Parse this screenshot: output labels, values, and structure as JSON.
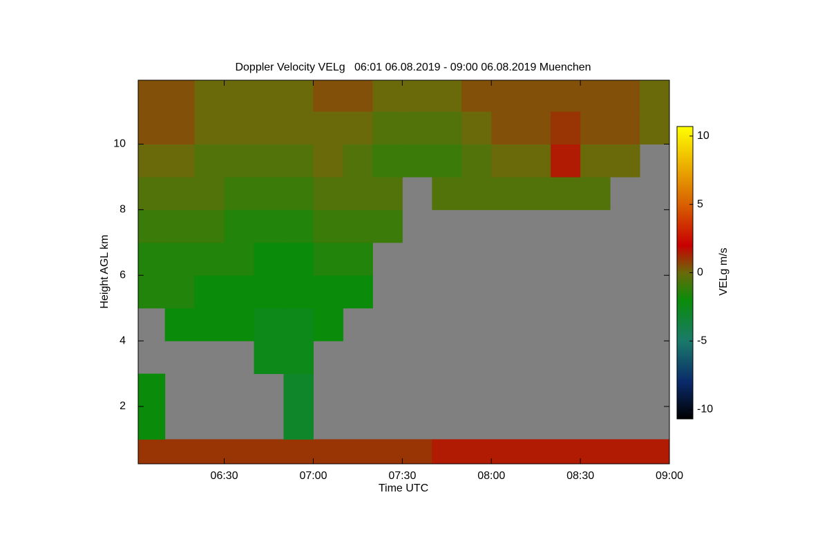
{
  "chart_data": {
    "type": "heatmap",
    "title": "Doppler Velocity VELg   06:01 06.08.2019 - 09:00 06.08.2019 Muenchen",
    "xlabel": "Time UTC",
    "ylabel": "Height AGL km",
    "xlim": [
      6.0167,
      9.0
    ],
    "xticks": [
      {
        "value": 6.5,
        "label": "06:30"
      },
      {
        "value": 7,
        "label": "07:00"
      },
      {
        "value": 7.5,
        "label": "07:30"
      },
      {
        "value": 8,
        "label": "08:00"
      },
      {
        "value": 8.5,
        "label": "08:30"
      },
      {
        "value": 9,
        "label": "09:00"
      }
    ],
    "ylim": [
      0.25,
      11.95
    ],
    "yticks": [
      2,
      4,
      6,
      8,
      10
    ],
    "xbins": [
      6.0167,
      6.1667,
      6.3333,
      6.5,
      6.6667,
      6.8333,
      7.0,
      7.1667,
      7.3333,
      7.5,
      7.6667,
      7.8333,
      8.0,
      8.1667,
      8.3333,
      8.5,
      8.6667,
      8.8333,
      9.0
    ],
    "ybins": [
      0.25,
      1,
      2,
      3,
      4,
      5,
      6,
      7,
      8,
      9,
      10,
      11,
      11.95
    ],
    "values": [
      [
        1,
        1,
        1,
        1,
        1,
        1,
        1,
        1,
        1,
        1,
        1.5,
        1.5,
        1.5,
        1.5,
        1.5,
        1.5,
        1.5,
        1.5
      ],
      [
        -2,
        null,
        null,
        null,
        null,
        -3,
        null,
        null,
        null,
        null,
        null,
        null,
        null,
        null,
        null,
        null,
        null,
        null
      ],
      [
        -2,
        null,
        null,
        null,
        null,
        -3,
        null,
        null,
        null,
        null,
        null,
        null,
        null,
        null,
        null,
        null,
        null,
        null
      ],
      [
        null,
        null,
        null,
        null,
        -2.5,
        -2.5,
        null,
        null,
        null,
        null,
        null,
        null,
        null,
        null,
        null,
        null,
        null,
        null
      ],
      [
        null,
        -2,
        -2,
        -2,
        -2.5,
        -2.5,
        -2,
        null,
        null,
        null,
        null,
        null,
        null,
        null,
        null,
        null,
        null,
        null
      ],
      [
        -1.5,
        -1.5,
        -2,
        -2,
        -2,
        -2,
        -2,
        -2,
        null,
        null,
        null,
        null,
        null,
        null,
        null,
        null,
        null,
        null
      ],
      [
        -1.5,
        -1.5,
        -1.5,
        -1.5,
        -2,
        -2,
        -1.5,
        -1.5,
        null,
        null,
        null,
        null,
        null,
        null,
        null,
        null,
        null,
        null
      ],
      [
        -1,
        -1,
        -1,
        -1.5,
        -1.5,
        -1.5,
        -1,
        -1,
        -1,
        null,
        null,
        null,
        null,
        null,
        null,
        null,
        null,
        null
      ],
      [
        -0.5,
        -0.5,
        -0.5,
        -1,
        -1,
        -1,
        -0.5,
        -0.5,
        -0.5,
        null,
        -0.5,
        -0.5,
        -0.5,
        -0.5,
        -0.5,
        -0.5,
        null,
        null
      ],
      [
        0,
        0,
        -0.5,
        -0.5,
        -0.5,
        -0.5,
        0,
        -0.5,
        -1,
        -1,
        -1,
        -0.5,
        0,
        0,
        1.5,
        0,
        0,
        null
      ],
      [
        0.5,
        0.5,
        0,
        0,
        0,
        0,
        0,
        0,
        -0.5,
        -0.5,
        -0.5,
        0,
        0.5,
        0.5,
        1,
        0.5,
        0.5,
        0
      ],
      [
        0.5,
        0.5,
        0,
        0,
        0,
        0,
        0.5,
        0.5,
        0,
        0,
        0,
        0.5,
        0.5,
        0.5,
        0.5,
        0.5,
        0.5,
        0
      ]
    ],
    "nodata_color": "#808080",
    "colormap": [
      {
        "value": -10.7,
        "color": "#000000"
      },
      {
        "value": -8,
        "color": "#0a2a6a"
      },
      {
        "value": -5,
        "color": "#1a7a6a"
      },
      {
        "value": -2,
        "color": "#0a8c0a"
      },
      {
        "value": 0,
        "color": "#6a6a0a"
      },
      {
        "value": 2,
        "color": "#c80000"
      },
      {
        "value": 5,
        "color": "#d86000"
      },
      {
        "value": 10.7,
        "color": "#ffff00"
      }
    ],
    "colorbar": {
      "label": "VELg m/s",
      "lim": [
        -10.7,
        10.7
      ],
      "ticks": [
        -10,
        -5,
        0,
        5,
        10
      ]
    }
  }
}
